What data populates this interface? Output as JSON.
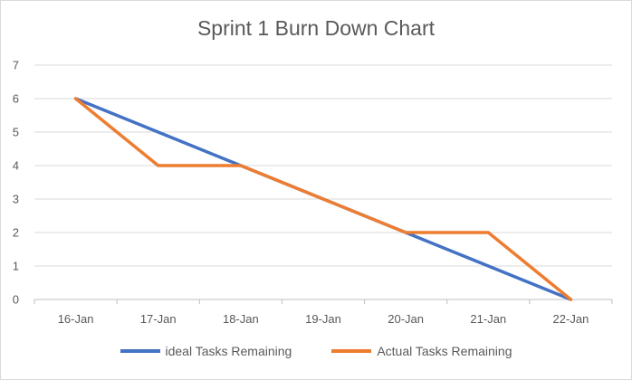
{
  "chart_data": {
    "type": "line",
    "title": "Sprint 1 Burn Down Chart",
    "categories": [
      "16-Jan",
      "17-Jan",
      "18-Jan",
      "19-Jan",
      "20-Jan",
      "21-Jan",
      "22-Jan"
    ],
    "series": [
      {
        "name": "ideal Tasks Remaining",
        "values": [
          6,
          5,
          4,
          3,
          2,
          1,
          0
        ],
        "color": "#4472c4"
      },
      {
        "name": "Actual Tasks Remaining",
        "values": [
          6,
          4,
          4,
          3,
          2,
          2,
          0
        ],
        "color": "#ed7d31"
      }
    ],
    "ylim": [
      0,
      7
    ],
    "yticks": [
      0,
      1,
      2,
      3,
      4,
      5,
      6,
      7
    ],
    "grid": true,
    "legend": "bottom"
  }
}
